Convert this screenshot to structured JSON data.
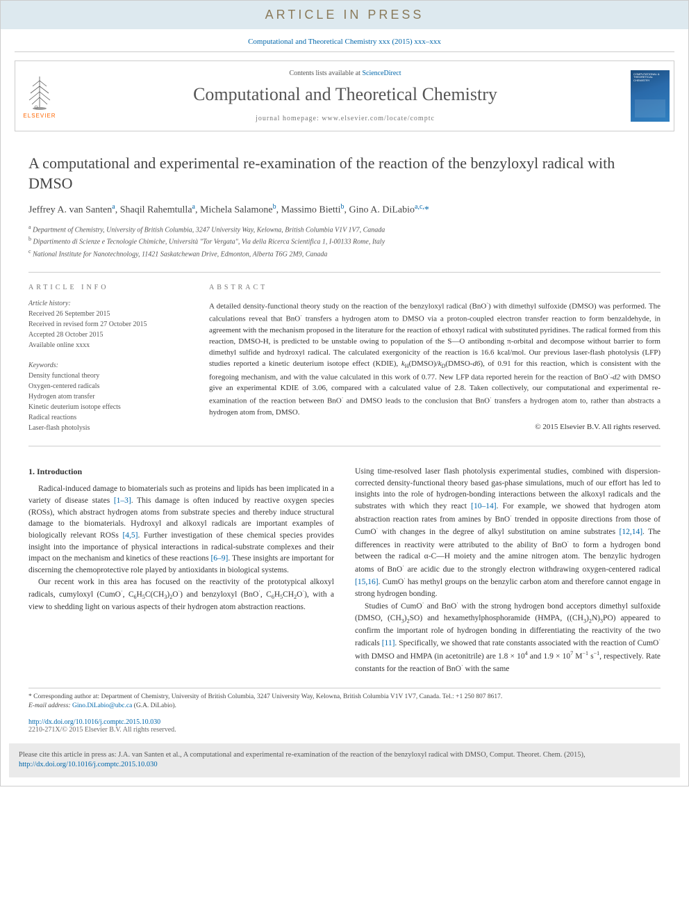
{
  "banner": {
    "text": "ARTICLE IN PRESS"
  },
  "citation_top": "Computational and Theoretical Chemistry xxx (2015) xxx–xxx",
  "header": {
    "contents_prefix": "Contents lists available at ",
    "contents_link": "ScienceDirect",
    "journal": "Computational and Theoretical Chemistry",
    "homepage": "journal homepage: www.elsevier.com/locate/comptc",
    "publisher": "ELSEVIER",
    "cover_label": "COMPUTATIONAL & THEORETICAL CHEMISTRY"
  },
  "title": "A computational and experimental re-examination of the reaction of the benzyloxyl radical with DMSO",
  "authors_html": "Jeffrey A. van Santen<span class='sup'>a</span>, Shaqil Rahemtulla<span class='sup'>a</span>, Michela Salamone<span class='sup'>b</span>, Massimo Bietti<span class='sup'>b</span>, Gino A. DiLabio<span class='sup'>a,c,</span><span class='star'>*</span>",
  "affiliations": {
    "a": "Department of Chemistry, University of British Columbia, 3247 University Way, Kelowna, British Columbia V1V 1V7, Canada",
    "b": "Dipartimento di Scienze e Tecnologie Chimiche, Università \"Tor Vergata\", Via della Ricerca Scientifica 1, I-00133 Rome, Italy",
    "c": "National Institute for Nanotechnology, 11421 Saskatchewan Drive, Edmonton, Alberta T6G 2M9, Canada"
  },
  "info": {
    "heading": "article info",
    "history_heading": "Article history:",
    "received": "Received 26 September 2015",
    "revised": "Received in revised form 27 October 2015",
    "accepted": "Accepted 28 October 2015",
    "online": "Available online xxxx",
    "keywords_heading": "Keywords:",
    "keywords": [
      "Density functional theory",
      "Oxygen-centered radicals",
      "Hydrogen atom transfer",
      "Kinetic deuterium isotope effects",
      "Radical reactions",
      "Laser-flash photolysis"
    ]
  },
  "abstract": {
    "heading": "abstract",
    "text_html": "A detailed density-functional theory study on the reaction of the benzyloxyl radical (BnO<span class='sup2'>·</span>) with dimethyl sulfoxide (DMSO) was performed. The calculations reveal that BnO<span class='sup2'>·</span> transfers a hydrogen atom to DMSO via a proton-coupled electron transfer reaction to form benzaldehyde, in agreement with the mechanism proposed in the literature for the reaction of ethoxyl radical with substituted pyridines. The radical formed from this reaction, DMSO-H, is predicted to be unstable owing to population of the S—O antibonding π-orbital and decompose without barrier to form dimethyl sulfide and hydroxyl radical. The calculated exergonicity of the reaction is 16.6 kcal/mol. Our previous laser-flash photolysis (LFP) studies reported a kinetic deuterium isotope effect (KDIE), <i>k</i><span class='sub'>H</span>(DMSO)/<i>k</i><span class='sub'>D</span>(DMSO-<i>d6</i>), of 0.91 for this reaction, which is consistent with the foregoing mechanism, and with the value calculated in this work of 0.77. New LFP data reported herein for the reaction of BnO<span class='sup2'>·</span>-<i>d2</i> with DMSO give an experimental KDIE of 3.06, compared with a calculated value of 2.8. Taken collectively, our computational and experimental re-examination of the reaction between BnO<span class='sup2'>·</span> and DMSO leads to the conclusion that BnO<span class='sup2'>·</span> transfers a hydrogen atom to, rather than abstracts a hydrogen atom from, DMSO.",
    "copyright": "© 2015 Elsevier B.V. All rights reserved."
  },
  "body": {
    "section_heading": "1. Introduction",
    "left_paras": [
      "Radical-induced damage to biomaterials such as proteins and lipids has been implicated in a variety of disease states <a class='ref'>[1–3]</a>. This damage is often induced by reactive oxygen species (ROSs), which abstract hydrogen atoms from substrate species and thereby induce structural damage to the biomaterials. Hydroxyl and alkoxyl radicals are important examples of biologically relevant ROSs <a class='ref'>[4,5]</a>. Further investigation of these chemical species provides insight into the importance of physical interactions in radical-substrate complexes and their impact on the mechanism and kinetics of these reactions <a class='ref'>[6–9]</a>. These insights are important for discerning the chemoprotective role played by antioxidants in biological systems.",
      "Our recent work in this area has focused on the reactivity of the prototypical alkoxyl radicals, cumyloxyl (CumO<span class='sup2'>·</span>, C<span class='sub'>6</span>H<span class='sub'>5</span>C(CH<span class='sub'>3</span>)<span class='sub'>2</span>O<span class='sup2'>·</span>) and benzyloxyl (BnO<span class='sup2'>·</span>, C<span class='sub'>6</span>H<span class='sub'>5</span>CH<span class='sub'>2</span>O<span class='sup2'>·</span>), with a view to shedding light on various aspects of their hydrogen atom abstraction reactions."
    ],
    "right_paras": [
      "Using time-resolved laser flash photolysis experimental studies, combined with dispersion-corrected density-functional theory based gas-phase simulations, much of our effort has led to insights into the role of hydrogen-bonding interactions between the alkoxyl radicals and the substrates with which they react <a class='ref'>[10–14]</a>. For example, we showed that hydrogen atom abstraction reaction rates from amines by BnO<span class='sup2'>·</span> trended in opposite directions from those of CumO<span class='sup2'>·</span> with changes in the degree of alkyl substitution on amine substrates <a class='ref'>[12,14]</a>. The differences in reactivity were attributed to the ability of BnO<span class='sup2'>·</span> to form a hydrogen bond between the radical α-C—H moiety and the amine nitrogen atom. The benzylic hydrogen atoms of BnO<span class='sup2'>·</span> are acidic due to the strongly electron withdrawing oxygen-centered radical <a class='ref'>[15,16]</a>. CumO<span class='sup2'>·</span> has methyl groups on the benzylic carbon atom and therefore cannot engage in strong hydrogen bonding.",
      "Studies of CumO<span class='sup2'>·</span> and BnO<span class='sup2'>·</span> with the strong hydrogen bond acceptors dimethyl sulfoxide (DMSO, (CH<span class='sub'>3</span>)<span class='sub'>2</span>SO) and hexamethylphosphoramide (HMPA, ((CH<span class='sub'>3</span>)<span class='sub'>2</span>N)<span class='sub'>3</span>PO) appeared to confirm the important role of hydrogen bonding in differentiating the reactivity of the two radicals <a class='ref'>[11]</a>. Specifically, we showed that rate constants associated with the reaction of CumO<span class='sup2'>·</span> with DMSO and HMPA (in acetonitrile) are 1.8 × 10<span class='sup2'>4</span> and 1.9 × 10<span class='sup2'>7</span> M<span class='sup2'>−1</span> s<span class='sup2'>−1</span>, respectively. Rate constants for the reaction of BnO<span class='sup2'>·</span> with the same"
    ]
  },
  "footnotes": {
    "corr": "* Corresponding author at: Department of Chemistry, University of British Columbia, 3247 University Way, Kelowna, British Columbia V1V 1V7, Canada. Tel.: +1 250 807 8617.",
    "email_label": "E-mail address:",
    "email": "Gino.DiLabio@ubc.ca",
    "email_who": "(G.A. DiLabio)."
  },
  "doi": {
    "url": "http://dx.doi.org/10.1016/j.comptc.2015.10.030",
    "issn": "2210-271X/© 2015 Elsevier B.V. All rights reserved."
  },
  "cite_box": {
    "text_prefix": "Please cite this article in press as: J.A. van Santen et al., A computational and experimental re-examination of the reaction of the benzyloxyl radical with DMSO, Comput. Theoret. Chem. (2015), ",
    "link": "http://dx.doi.org/10.1016/j.comptc.2015.10.030"
  },
  "colors": {
    "link": "#0066aa",
    "banner_bg": "#dde9ef",
    "banner_fg": "#8a7a5a",
    "elsevier_orange": "#ff6600",
    "border": "#cccccc",
    "text": "#333333",
    "citebox_bg": "#eaeaea"
  },
  "fonts": {
    "title_pt": 22,
    "journal_pt": 26,
    "body_pt": 11.5,
    "abstract_pt": 11,
    "info_pt": 10
  }
}
